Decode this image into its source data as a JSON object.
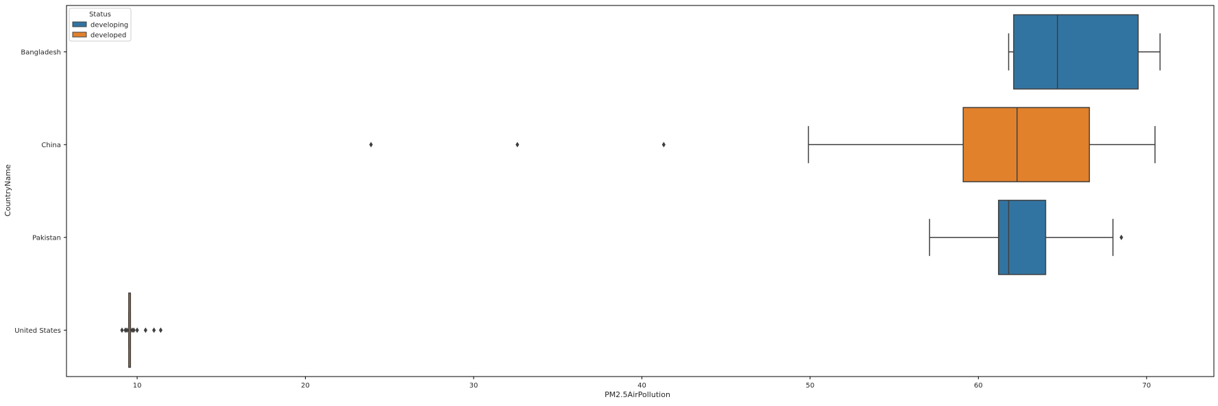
{
  "chart_data": {
    "type": "boxplot",
    "orientation": "horizontal",
    "xlabel": "PM2.5AirPollution",
    "ylabel": "CountryName",
    "xlim": [
      5.8,
      74.0
    ],
    "xticks": [
      10,
      20,
      30,
      40,
      50,
      60,
      70
    ],
    "grid": false,
    "legend": {
      "title": "Status",
      "placement": "top-left",
      "entries": [
        {
          "label": "developing",
          "color": "#3274a1"
        },
        {
          "label": "developed",
          "color": "#e1812c"
        }
      ]
    },
    "categories": [
      "Bangladesh",
      "China",
      "Pakistan",
      "United States"
    ],
    "boxes": [
      {
        "category": "Bangladesh",
        "status": "developing",
        "whisker_low": 61.8,
        "q1": 62.1,
        "median": 64.7,
        "q3": 69.5,
        "whisker_high": 70.8,
        "outliers": []
      },
      {
        "category": "China",
        "status": "developed",
        "whisker_low": 49.9,
        "q1": 59.1,
        "median": 62.3,
        "q3": 66.6,
        "whisker_high": 70.5,
        "outliers": [
          23.9,
          32.6,
          41.3
        ]
      },
      {
        "category": "Pakistan",
        "status": "developing",
        "whisker_low": 57.1,
        "q1": 61.2,
        "median": 61.8,
        "q3": 64.0,
        "whisker_high": 68.0,
        "outliers": [
          68.5
        ]
      },
      {
        "category": "United States",
        "status": "developed",
        "whisker_low": 9.5,
        "q1": 9.5,
        "median": 9.6,
        "q3": 9.6,
        "whisker_high": 9.6,
        "outliers": [
          9.1,
          9.3,
          9.4,
          9.7,
          9.8,
          10.0,
          10.5,
          11.0,
          11.4
        ]
      }
    ]
  }
}
